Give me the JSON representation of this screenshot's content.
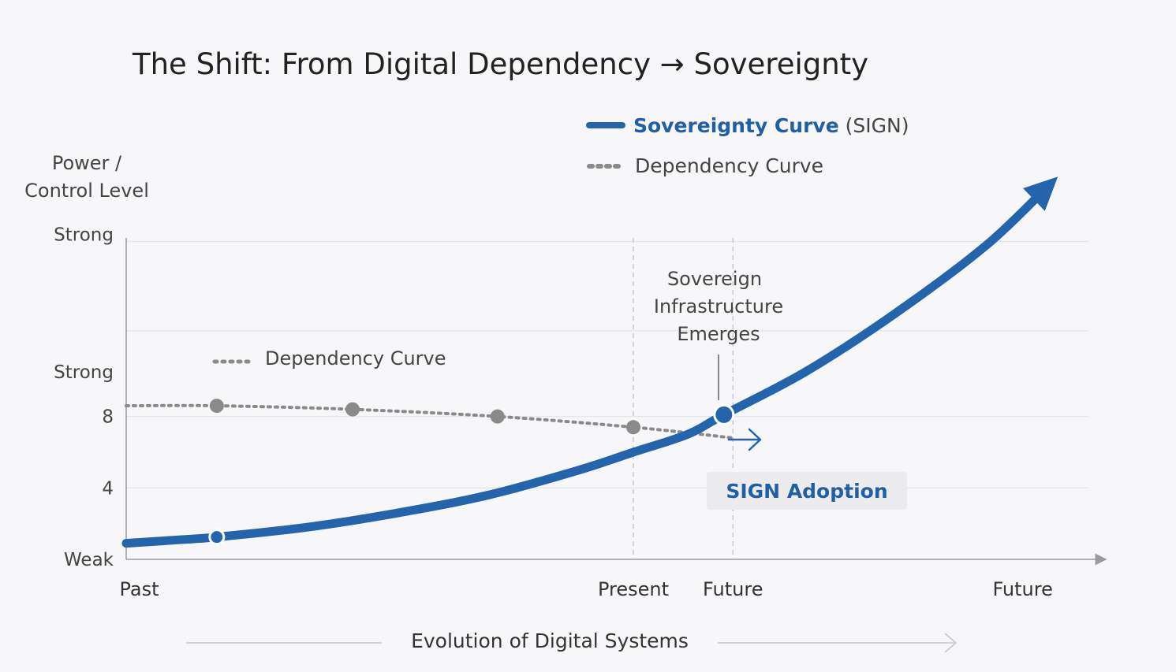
{
  "title": "The Shift: From Digital Dependency → Sovereignty",
  "legend": {
    "sovereignty_name": "Sovereignty Curve",
    "sovereignty_suffix": "(SIGN)",
    "dependency_name": "Dependency Curve"
  },
  "colors": {
    "sovereignty": "#2364ad",
    "dependency": "#8a8a8a",
    "grid": "#e4e4e8",
    "axis": "#9a9aa0",
    "badge_bg": "#ececee"
  },
  "chart_data": {
    "type": "line",
    "title": "The Shift: From Digital Dependency → Sovereignty",
    "ylabel_lines": [
      "Power /",
      "Control Level"
    ],
    "xlabel": "Evolution of Digital Systems",
    "x_ticks": [
      {
        "x": 0.1,
        "label": "Past"
      },
      {
        "x": 5.6,
        "label": "Present"
      },
      {
        "x": 6.7,
        "label": "Future"
      },
      {
        "x": 9.9,
        "label": "Future"
      }
    ],
    "y_ticks": [
      {
        "y": 0,
        "label": "Weak"
      },
      {
        "y": 4,
        "label": "4"
      },
      {
        "y": 8,
        "label": "8"
      },
      {
        "y": 10.5,
        "label": "Strong"
      },
      {
        "y": 18.2,
        "label": "Strong"
      }
    ],
    "xlim": [
      0,
      10.8
    ],
    "ylim": [
      0,
      18
    ],
    "gridlines_y": [
      4,
      8,
      12.8,
      17.8
    ],
    "vlines_x": [
      5.6,
      6.7
    ],
    "series": [
      {
        "name": "Sovereignty Curve",
        "style": "solid",
        "x": [
          0,
          0.6,
          1.0,
          2.0,
          3.0,
          4.0,
          5.0,
          5.6,
          6.2,
          6.6,
          7.5,
          8.5,
          9.5,
          10.2
        ],
        "y": [
          0.9,
          1.1,
          1.25,
          1.8,
          2.6,
          3.6,
          5.0,
          6.0,
          7.0,
          8.1,
          10.5,
          13.8,
          17.6,
          21.0
        ],
        "markers": [
          {
            "x": 1.0,
            "y": 1.25
          },
          {
            "x": 6.6,
            "y": 8.1
          }
        ]
      },
      {
        "name": "Dependency Curve",
        "style": "dotted",
        "x": [
          0,
          1,
          2.5,
          4.1,
          5.6,
          6.7
        ],
        "y": [
          8.6,
          8.6,
          8.4,
          8.0,
          7.4,
          6.8
        ],
        "markers": [
          {
            "x": 1,
            "y": 8.6
          },
          {
            "x": 2.5,
            "y": 8.4
          },
          {
            "x": 4.1,
            "y": 8.0
          },
          {
            "x": 5.6,
            "y": 7.4
          }
        ]
      }
    ],
    "annotations": {
      "dependency_label": "Dependency Curve",
      "emerges_lines": [
        "Sovereign",
        "Infrastructure",
        "Emerges"
      ],
      "badge": "SIGN Adoption"
    }
  }
}
